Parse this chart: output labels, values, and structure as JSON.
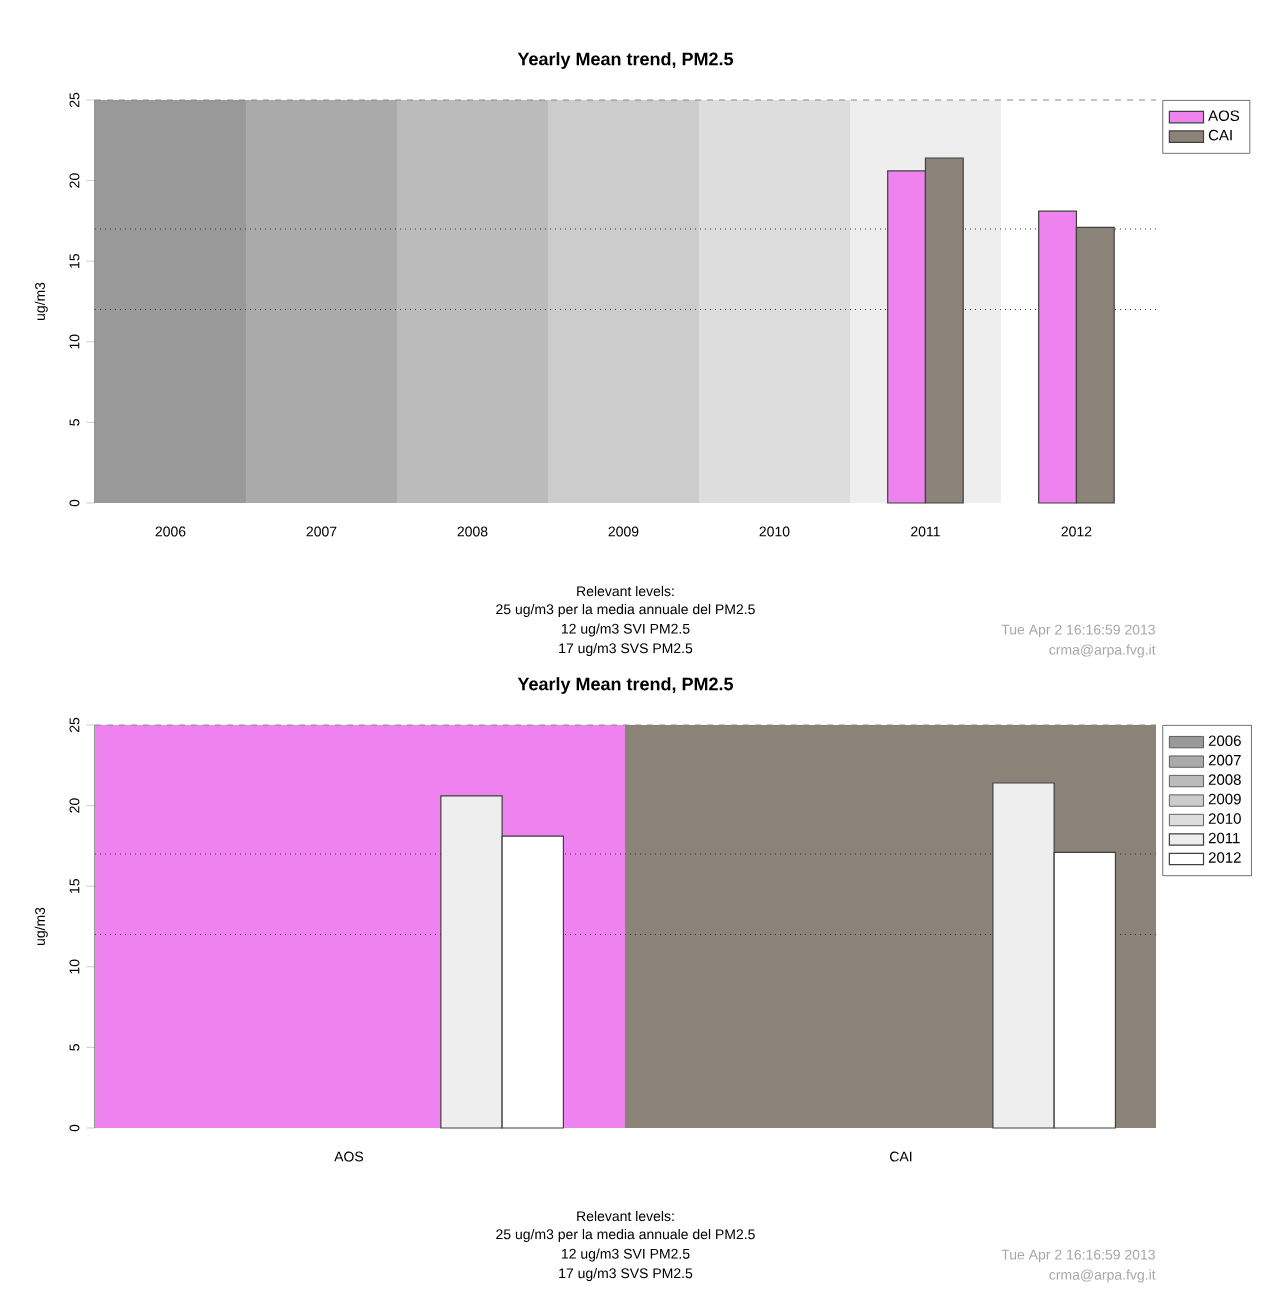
{
  "chart_data": [
    {
      "type": "bar",
      "title": "Yearly Mean trend, PM2.5",
      "ylabel": "ug/m3",
      "categories": [
        "2006",
        "2007",
        "2008",
        "2009",
        "2010",
        "2011",
        "2012"
      ],
      "series": [
        {
          "name": "AOS",
          "color": "#ee82ee",
          "values": [
            null,
            null,
            null,
            null,
            null,
            20.6,
            18.1
          ]
        },
        {
          "name": "CAI",
          "color": "#8b8378",
          "values": [
            null,
            null,
            null,
            null,
            null,
            21.4,
            17.1
          ]
        }
      ],
      "ylim": [
        0,
        25
      ],
      "yticks": [
        0,
        5,
        10,
        15,
        20,
        25
      ],
      "legend": "top right",
      "ref_lines": [
        {
          "axis": "y",
          "value": 25,
          "color": "#888888",
          "line_style": "dashed"
        },
        {
          "axis": "y",
          "value": 17,
          "color": "#333333",
          "line_style": "dotted"
        },
        {
          "axis": "y",
          "value": 12,
          "color": "#333333",
          "line_style": "dotted"
        }
      ],
      "bands": [
        {
          "axis": "x",
          "from": "2006",
          "to": "2006",
          "color": "#999999"
        },
        {
          "axis": "x",
          "from": "2007",
          "to": "2007",
          "color": "#aaaaaa"
        },
        {
          "axis": "x",
          "from": "2008",
          "to": "2008",
          "color": "#bbbbbb"
        },
        {
          "axis": "x",
          "from": "2009",
          "to": "2009",
          "color": "#cccccc"
        },
        {
          "axis": "x",
          "from": "2010",
          "to": "2010",
          "color": "#dddddd"
        },
        {
          "axis": "x",
          "from": "2011",
          "to": "2011",
          "color": "#eeeeee"
        }
      ],
      "annotations": [
        "Relevant levels:",
        "25 ug/m3 per la media annuale del PM2.5",
        "12 ug/m3 SVI PM2.5",
        "17 ug/m3 SVS PM2.5",
        "Tue Apr  2 16:16:59 2013",
        "crma@arpa.fvg.it"
      ]
    },
    {
      "type": "bar",
      "title": "Yearly Mean trend, PM2.5",
      "ylabel": "ug/m3",
      "categories": [
        "AOS",
        "CAI"
      ],
      "series": [
        {
          "name": "2006",
          "color": "#999999",
          "values": [
            null,
            null
          ]
        },
        {
          "name": "2007",
          "color": "#aaaaaa",
          "values": [
            null,
            null
          ]
        },
        {
          "name": "2008",
          "color": "#bbbbbb",
          "values": [
            null,
            null
          ]
        },
        {
          "name": "2009",
          "color": "#cccccc",
          "values": [
            null,
            null
          ]
        },
        {
          "name": "2010",
          "color": "#dddddd",
          "values": [
            null,
            null
          ]
        },
        {
          "name": "2011",
          "color": "#eeeeee",
          "values": [
            20.6,
            21.4
          ]
        },
        {
          "name": "2012",
          "color": "#ffffff",
          "values": [
            18.1,
            17.1
          ]
        }
      ],
      "ylim": [
        0,
        25
      ],
      "yticks": [
        0,
        5,
        10,
        15,
        20,
        25
      ],
      "legend": "top right",
      "ref_lines": [
        {
          "axis": "y",
          "value": 25,
          "color": "#888888",
          "line_style": "dashed"
        },
        {
          "axis": "y",
          "value": 17,
          "color": "#333333",
          "line_style": "dotted"
        },
        {
          "axis": "y",
          "value": 12,
          "color": "#333333",
          "line_style": "dotted"
        }
      ],
      "bands": [
        {
          "axis": "x",
          "from": "AOS",
          "to": "AOS",
          "color": "#ee82ee"
        },
        {
          "axis": "x",
          "from": "CAI",
          "to": "CAI",
          "color": "#8b8378"
        }
      ],
      "annotations": [
        "Relevant levels:",
        "25 ug/m3 per la media annuale del PM2.5",
        "12 ug/m3 SVI PM2.5",
        "17 ug/m3 SVS PM2.5",
        "Tue Apr  2 16:16:59 2013",
        "crma@arpa.fvg.it"
      ]
    }
  ]
}
